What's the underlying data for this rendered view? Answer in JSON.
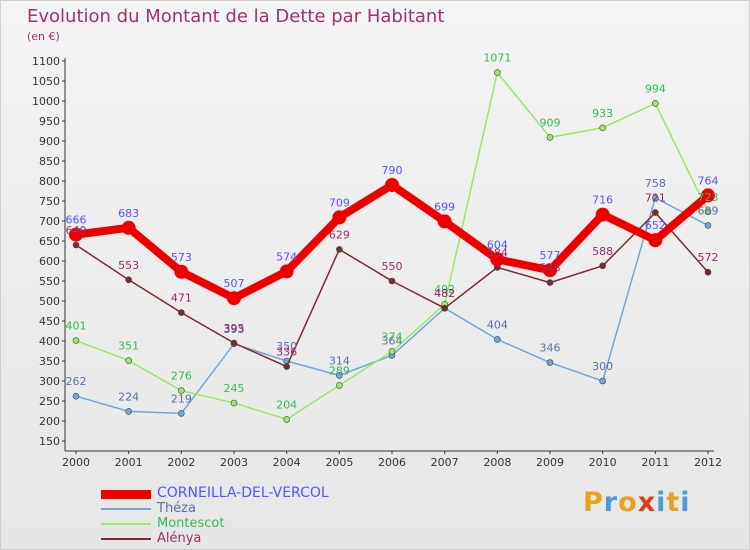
{
  "title": "Evolution du Montant de la Dette par Habitant",
  "unit": "(en €)",
  "logo": {
    "letters": [
      "P",
      "r",
      "o",
      "x",
      "i",
      "t",
      "i"
    ],
    "colors": [
      "#e8a21f",
      "#4a9ad8",
      "#e8a21f",
      "#e03a1e",
      "#4a9ad8",
      "#e8a21f",
      "#4a9ad8"
    ]
  },
  "chart_data": {
    "type": "line",
    "title": "Evolution du Montant de la Dette par Habitant",
    "ylabel": "(en €)",
    "xlabel": "",
    "ylim": [
      150,
      1100
    ],
    "ytick_step": 50,
    "grid": false,
    "legend_position": "bottom-left",
    "x": [
      "2000",
      "2001",
      "2002",
      "2003",
      "2004",
      "2005",
      "2006",
      "2007",
      "2008",
      "2009",
      "2010",
      "2011",
      "2012"
    ],
    "series": [
      {
        "name": "CORNEILLA-DEL-VERCOL",
        "color": "#ee0000",
        "label_color": "#5555ff",
        "emphasis": true,
        "values": [
          666,
          683,
          573,
          507,
          574,
          709,
          790,
          699,
          604,
          577,
          716,
          652,
          764
        ]
      },
      {
        "name": "Théza",
        "color": "#6fa8d8",
        "label_color": "#5b6ea8",
        "values": [
          262,
          224,
          219,
          393,
          350,
          314,
          364,
          482,
          404,
          346,
          300,
          758,
          689
        ]
      },
      {
        "name": "Montescot",
        "color": "#99e866",
        "label_color": "#33bb55",
        "values": [
          401,
          351,
          276,
          245,
          204,
          289,
          374,
          492,
          1071,
          909,
          933,
          994,
          723
        ]
      },
      {
        "name": "Alénya",
        "color": "#7b2a2f",
        "label_color": "#9a2d66",
        "values": [
          640,
          553,
          471,
          395,
          336,
          629,
          550,
          482,
          584,
          546,
          588,
          721,
          572
        ]
      }
    ]
  }
}
